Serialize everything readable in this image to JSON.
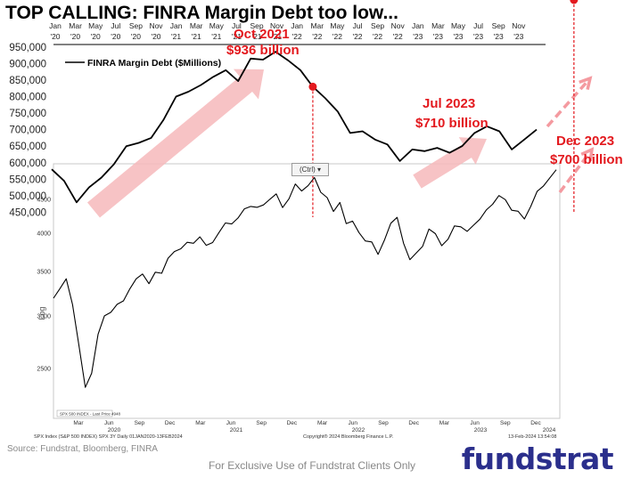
{
  "title": "TOP CALLING: FINRA Margin Debt too low...",
  "source": "Source: Fundstrat, Bloomberg, FINRA",
  "exclusive_note": "For Exclusive Use of Fundstrat Clients Only",
  "brand": "fundstrat",
  "paste_control": "(Ctrl) ▾",
  "chart_data": [
    {
      "type": "line",
      "legend": "FINRA Margin Debt ($Millions)",
      "x_tick_labels": [
        [
          "Jan",
          "'20"
        ],
        [
          "Mar",
          "'20"
        ],
        [
          "May",
          "'20"
        ],
        [
          "Jul",
          "'20"
        ],
        [
          "Sep",
          "'20"
        ],
        [
          "Nov",
          "'20"
        ],
        [
          "Jan",
          "'21"
        ],
        [
          "Mar",
          "'21"
        ],
        [
          "May",
          "'21"
        ],
        [
          "Jul",
          "'21"
        ],
        [
          "Sep",
          "'21"
        ],
        [
          "Nov",
          "'21"
        ],
        [
          "Jan",
          "'22"
        ],
        [
          "Mar",
          "'22"
        ],
        [
          "May",
          "'22"
        ],
        [
          "Jul",
          "'22"
        ],
        [
          "Sep",
          "'22"
        ],
        [
          "Nov",
          "'22"
        ],
        [
          "Jan",
          "'23"
        ],
        [
          "Mar",
          "'23"
        ],
        [
          "May",
          "'23"
        ],
        [
          "Jul",
          "'23"
        ],
        [
          "Sep",
          "'23"
        ],
        [
          "Nov",
          "'23"
        ]
      ],
      "y_ticks": [
        450000,
        500000,
        550000,
        600000,
        650000,
        700000,
        750000,
        800000,
        850000,
        900000,
        950000
      ],
      "y_tick_labels": [
        "450,000",
        "500,000",
        "550,000",
        "600,000",
        "650,000",
        "700,000",
        "750,000",
        "800,000",
        "850,000",
        "900,000",
        "950,000"
      ],
      "ylim": [
        435000,
        955000
      ],
      "values": [
        580000,
        545000,
        480000,
        525000,
        555000,
        595000,
        650000,
        660000,
        675000,
        730000,
        800000,
        815000,
        835000,
        860000,
        880000,
        847000,
        915000,
        912000,
        936000,
        910000,
        880000,
        830000,
        795000,
        755000,
        690000,
        695000,
        670000,
        655000,
        605000,
        640000,
        635000,
        645000,
        630000,
        650000,
        690000,
        710000,
        695000,
        640000,
        670000,
        700000
      ],
      "annotations": [
        {
          "label": "Oct 2021",
          "value_label": "$936 billion",
          "index": 21
        },
        {
          "label": "Jul 2023",
          "value_label": "$710 billion",
          "index": 42
        },
        {
          "label": "Dec 2023",
          "value_label": "$700 billion",
          "index": 47
        }
      ]
    },
    {
      "type": "line",
      "legend": "SPX 500 INDEX - Last Price 4948",
      "scale": "log",
      "ylabel": "Log",
      "y_tick_labels": [
        "2500",
        "3000",
        "3500",
        "4000",
        "4500"
      ],
      "x_month_labels": [
        "Mar",
        "Jun",
        "Sep",
        "Dec",
        "Mar",
        "Jun",
        "Sep",
        "Dec",
        "Mar",
        "Jun",
        "Sep",
        "Dec",
        "Mar",
        "Jun",
        "Sep",
        "Dec"
      ],
      "x_year_labels": [
        "2020",
        "2021",
        "2022",
        "2023",
        "2024"
      ],
      "points": [
        [
          0,
          3230
        ],
        [
          1,
          3300
        ],
        [
          2,
          3380
        ],
        [
          3,
          3150
        ],
        [
          4,
          2700
        ],
        [
          5,
          2300
        ],
        [
          6,
          2480
        ],
        [
          7,
          2800
        ],
        [
          8,
          2950
        ],
        [
          9,
          3050
        ],
        [
          10,
          3100
        ],
        [
          11,
          3200
        ],
        [
          12,
          3300
        ],
        [
          13,
          3380
        ],
        [
          14,
          3500
        ],
        [
          15,
          3350
        ],
        [
          16,
          3450
        ],
        [
          17,
          3500
        ],
        [
          18,
          3650
        ],
        [
          19,
          3700
        ],
        [
          20,
          3800
        ],
        [
          21,
          3850
        ],
        [
          22,
          3900
        ],
        [
          23,
          3950
        ],
        [
          24,
          3800
        ],
        [
          25,
          3900
        ],
        [
          26,
          4000
        ],
        [
          27,
          4100
        ],
        [
          28,
          4150
        ],
        [
          29,
          4200
        ],
        [
          30,
          4300
        ],
        [
          31,
          4400
        ],
        [
          32,
          4350
        ],
        [
          33,
          4450
        ],
        [
          34,
          4500
        ],
        [
          35,
          4550
        ],
        [
          36,
          4400
        ],
        [
          37,
          4500
        ],
        [
          38,
          4700
        ],
        [
          39,
          4650
        ],
        [
          40,
          4700
        ],
        [
          41,
          4800
        ],
        [
          42,
          4620
        ],
        [
          43,
          4500
        ],
        [
          44,
          4350
        ],
        [
          45,
          4450
        ],
        [
          46,
          4100
        ],
        [
          47,
          4200
        ],
        [
          48,
          4000
        ],
        [
          49,
          3850
        ],
        [
          50,
          3900
        ],
        [
          51,
          3700
        ],
        [
          52,
          3850
        ],
        [
          53,
          4150
        ],
        [
          54,
          4200
        ],
        [
          55,
          3900
        ],
        [
          56,
          3650
        ],
        [
          57,
          3700
        ],
        [
          58,
          3850
        ],
        [
          59,
          4050
        ],
        [
          60,
          3950
        ],
        [
          61,
          3850
        ],
        [
          62,
          3900
        ],
        [
          63,
          4050
        ],
        [
          64,
          4100
        ],
        [
          65,
          4000
        ],
        [
          66,
          4150
        ],
        [
          67,
          4200
        ],
        [
          68,
          4300
        ],
        [
          69,
          4450
        ],
        [
          70,
          4550
        ],
        [
          71,
          4450
        ],
        [
          72,
          4350
        ],
        [
          73,
          4300
        ],
        [
          74,
          4150
        ],
        [
          75,
          4400
        ],
        [
          76,
          4600
        ],
        [
          77,
          4750
        ],
        [
          78,
          4850
        ],
        [
          79,
          4950
        ]
      ],
      "footer_left": "SPX Index (S&P 500 INDEX) SPX 3Y  Daily 01JAN2020-13FEB2024",
      "footer_center": "Copyright® 2024 Bloomberg Finance L.P.",
      "footer_right": "13-Feb-2024 13:54:08"
    }
  ],
  "colors": {
    "margin_line": "#000000",
    "spx_line": "#000000",
    "annotation": "#e3191e",
    "arrow_fill": "#f6b9bb",
    "brand": "#2b2f8c"
  }
}
